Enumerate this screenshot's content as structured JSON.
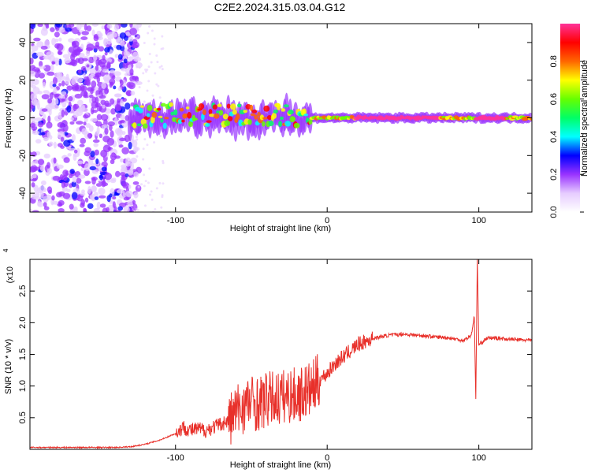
{
  "title": "C2E2.2024.315.03.04.G12",
  "chart_data": [
    {
      "type": "heatmap",
      "xlabel": "Height of straight line (km)",
      "ylabel": "Frequency (Hz)",
      "xlim": [
        -196,
        135
      ],
      "ylim": [
        -50,
        50
      ],
      "xticks": [
        -100,
        0,
        100
      ],
      "yticks": [
        -40,
        -20,
        0,
        20,
        40
      ],
      "colorbar": {
        "label": "Normalized spectral amplitude",
        "range": [
          0,
          1
        ],
        "ticks": [
          "0.0",
          "0.2",
          "0.4",
          "0.6",
          "0.8"
        ],
        "colors": [
          "#ffffff",
          "#e6ccff",
          "#9933ff",
          "#0000ff",
          "#00ffff",
          "#00ff66",
          "#66ff00",
          "#ffff00",
          "#ff6600",
          "#ff0000",
          "#ff3399"
        ]
      }
    },
    {
      "type": "line",
      "xlabel": "Height of straight line (km)",
      "ylabel": "SNR (10 * v/v)",
      "scale_note": "(x10",
      "scale_exp": "4",
      "xlim": [
        -196,
        135
      ],
      "ylim": [
        0,
        3.0
      ],
      "xticks": [
        -100,
        0,
        100
      ],
      "yticks": [
        "0.5",
        "1.0",
        "1.5",
        "2.0",
        "2.5"
      ],
      "color": "#e8302a",
      "series": [
        {
          "x": [
            -196,
            -180,
            -160,
            -140,
            -130,
            -120,
            -110,
            -100,
            -95,
            -90,
            -85,
            -80,
            -75,
            -70,
            -65,
            -60,
            -55,
            -50,
            -45,
            -40,
            -35,
            -30,
            -25,
            -20,
            -15,
            -10,
            -5,
            0,
            5,
            10,
            15,
            20,
            30,
            40,
            50,
            60,
            70,
            80,
            90,
            95,
            97,
            98,
            99,
            100,
            105,
            110,
            120,
            135
          ],
          "y": [
            0.03,
            0.03,
            0.03,
            0.03,
            0.04,
            0.08,
            0.15,
            0.25,
            0.35,
            0.3,
            0.32,
            0.3,
            0.35,
            0.4,
            0.45,
            0.6,
            0.7,
            0.75,
            0.72,
            0.78,
            0.8,
            0.82,
            0.85,
            0.85,
            0.9,
            0.95,
            1.1,
            1.2,
            1.35,
            1.45,
            1.55,
            1.65,
            1.75,
            1.8,
            1.82,
            1.8,
            1.78,
            1.76,
            1.72,
            1.8,
            2.1,
            0.8,
            3.0,
            1.65,
            1.75,
            1.76,
            1.74,
            1.72
          ]
        }
      ]
    }
  ]
}
